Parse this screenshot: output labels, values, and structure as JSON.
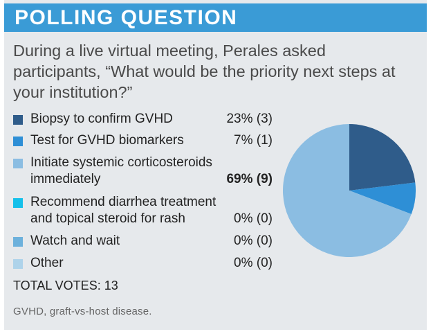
{
  "header": {
    "title": "POLLING QUESTION"
  },
  "question": "During a live virtual meeting, Perales asked participants, “What would be the priority next steps at your institution?”",
  "options": [
    {
      "label": "Biopsy to confirm GVHD",
      "value": "23% (3)",
      "color": "#2f5c8a"
    },
    {
      "label": "Test for GVHD biomarkers",
      "value": "7% (1)",
      "color": "#2e8fd6"
    },
    {
      "label": "Initiate systemic corticosteroids immediately",
      "value": "69% (9)",
      "color": "#8bbde2"
    },
    {
      "label": "Recommend diarrhea treatment and topical steroid for rash",
      "value": "0% (0)",
      "color": "#15c0ea"
    },
    {
      "label": "Watch and wait",
      "value": "0% (0)",
      "color": "#6db1dc"
    },
    {
      "label": "Other",
      "value": "0% (0)",
      "color": "#aed3ea"
    }
  ],
  "total_votes": "TOTAL VOTES: 13",
  "footnote": "GVHD, graft-vs-host disease.",
  "chart_data": {
    "type": "pie",
    "categories": [
      "Biopsy to confirm GVHD",
      "Test for GVHD biomarkers",
      "Initiate systemic corticosteroids immediately",
      "Recommend diarrhea treatment and topical steroid for rash",
      "Watch and wait",
      "Other"
    ],
    "values": [
      3,
      1,
      9,
      0,
      0,
      0
    ],
    "percent_labels": [
      "23%",
      "7%",
      "69%",
      "0%",
      "0%",
      "0%"
    ],
    "colors": [
      "#2f5c8a",
      "#2e8fd6",
      "#8bbde2",
      "#15c0ea",
      "#6db1dc",
      "#aed3ea"
    ],
    "title": "POLLING QUESTION"
  }
}
